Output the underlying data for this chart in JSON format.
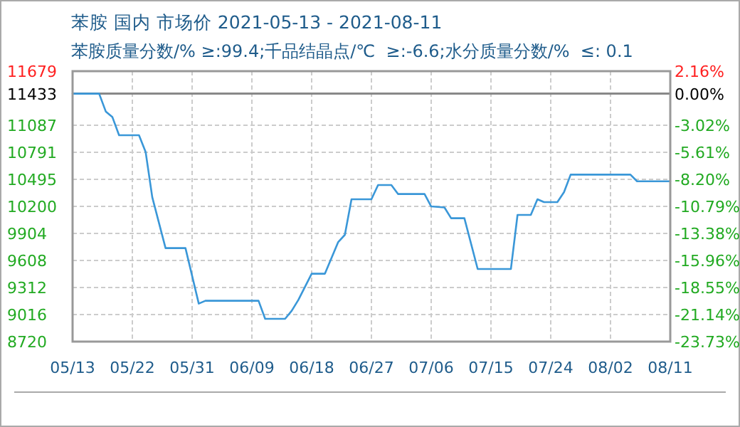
{
  "chart_data": {
    "type": "line",
    "title": "苯胺 国内 市场价 2021-05-13 - 2021-08-11",
    "subtitle": "苯胺质量分数/% ≥:99.4;千品结晶点/℃  ≥:-6.6;水分质量分数/%  ≤: 0.1",
    "x": [
      "2021-05-13",
      "2021-05-17",
      "2021-05-18",
      "2021-05-19",
      "2021-05-20",
      "2021-05-23",
      "2021-05-24",
      "2021-05-25",
      "2021-05-27",
      "2021-05-30",
      "2021-06-01",
      "2021-06-02",
      "2021-06-10",
      "2021-06-11",
      "2021-06-14",
      "2021-06-15",
      "2021-06-16",
      "2021-06-18",
      "2021-06-20",
      "2021-06-22",
      "2021-06-23",
      "2021-06-24",
      "2021-06-27",
      "2021-06-28",
      "2021-06-30",
      "2021-07-01",
      "2021-07-05",
      "2021-07-06",
      "2021-07-08",
      "2021-07-09",
      "2021-07-11",
      "2021-07-13",
      "2021-07-18",
      "2021-07-19",
      "2021-07-21",
      "2021-07-22",
      "2021-07-23",
      "2021-07-25",
      "2021-07-26",
      "2021-07-27",
      "2021-08-05",
      "2021-08-06",
      "2021-08-11"
    ],
    "series": [
      {
        "color": "#3a97d8",
        "values": [
          11433,
          11433,
          11238,
          11176,
          10978,
          10978,
          10796,
          10300,
          9743,
          9743,
          9136,
          9167,
          9167,
          8969,
          8969,
          9058,
          9176,
          9463,
          9463,
          9810,
          9888,
          10277,
          10277,
          10433,
          10433,
          10335,
          10335,
          10199,
          10188,
          10070,
          10070,
          9514,
          9514,
          10106,
          10106,
          10277,
          10246,
          10246,
          10355,
          10547,
          10547,
          10474,
          10474
        ]
      }
    ],
    "xlim": [
      "2021-05-13",
      "2021-08-11"
    ],
    "xticks": [
      {
        "value": "2021-05-13",
        "label": "05/13"
      },
      {
        "value": "2021-05-22",
        "label": "05/22"
      },
      {
        "value": "2021-05-31",
        "label": "05/31"
      },
      {
        "value": "2021-06-09",
        "label": "06/09"
      },
      {
        "value": "2021-06-18",
        "label": "06/18"
      },
      {
        "value": "2021-06-27",
        "label": "06/27"
      },
      {
        "value": "2021-07-06",
        "label": "07/06"
      },
      {
        "value": "2021-07-15",
        "label": "07/15"
      },
      {
        "value": "2021-07-24",
        "label": "07/24"
      },
      {
        "value": "2021-08-02",
        "label": "08/02"
      },
      {
        "value": "2021-08-11",
        "label": "08/11"
      }
    ],
    "ylim": [
      8720,
      11679
    ],
    "yticks": [
      8720,
      9016,
      9312,
      9608,
      9904,
      10200,
      10495,
      10791,
      11087,
      11433,
      11679
    ],
    "y2lim": [
      -23.73,
      2.16
    ],
    "y2ticks": [
      {
        "value": -23.73,
        "label": "-23.73%"
      },
      {
        "value": -21.14,
        "label": "-21.14%"
      },
      {
        "value": -18.55,
        "label": "-18.55%"
      },
      {
        "value": -15.96,
        "label": "-15.96%"
      },
      {
        "value": -13.38,
        "label": "-13.38%"
      },
      {
        "value": -10.79,
        "label": "-10.79%"
      },
      {
        "value": -8.2,
        "label": "-8.20%"
      },
      {
        "value": -5.61,
        "label": "-5.61%"
      },
      {
        "value": -3.02,
        "label": "-3.02%"
      },
      {
        "value": 0,
        "label": "0.00%"
      },
      {
        "value": 2.16,
        "label": "2.16%"
      }
    ],
    "ref_lines": [
      {
        "axis": "y",
        "value": 11433,
        "color": "#888888"
      }
    ],
    "grid": true
  }
}
